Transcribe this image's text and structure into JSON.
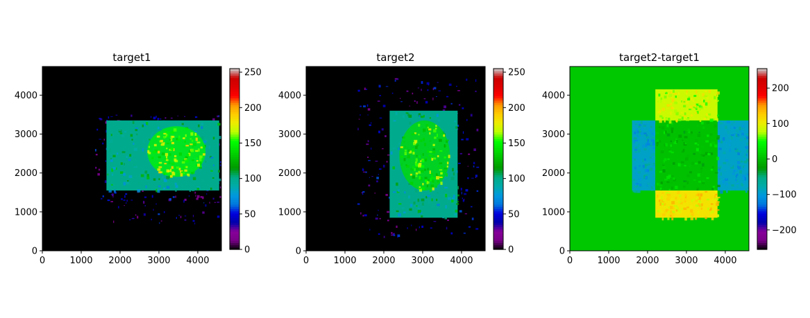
{
  "chart_data": [
    {
      "type": "heatmap",
      "title": "target1",
      "xlim": [
        0,
        4608
      ],
      "ylim": [
        0,
        4736
      ],
      "xticks": [
        0,
        1000,
        2000,
        3000,
        4000
      ],
      "yticks": [
        0,
        1000,
        2000,
        3000,
        4000
      ],
      "colorbar": {
        "colormap": "nipy_spectral",
        "range": [
          0,
          255
        ],
        "ticks": [
          0,
          50,
          100,
          150,
          200,
          250
        ]
      },
      "regions": [
        {
          "shape": "background",
          "value": 0
        },
        {
          "shape": "scatter_outline",
          "x_range": [
            1350,
            4600
          ],
          "y_range": [
            700,
            3500
          ],
          "value": 40
        },
        {
          "shape": "rectangle",
          "x_range": [
            1650,
            4550
          ],
          "y_range": [
            1550,
            3350
          ],
          "value": 100
        },
        {
          "shape": "blob",
          "center": [
            3450,
            2550
          ],
          "radius_x": 750,
          "radius_y": 650,
          "value": 150
        }
      ]
    },
    {
      "type": "heatmap",
      "title": "target2",
      "xlim": [
        0,
        4608
      ],
      "ylim": [
        0,
        4736
      ],
      "xticks": [
        0,
        1000,
        2000,
        3000,
        4000
      ],
      "yticks": [
        0,
        1000,
        2000,
        3000,
        4000
      ],
      "colorbar": {
        "colormap": "nipy_spectral",
        "range": [
          0,
          255
        ],
        "ticks": [
          0,
          50,
          100,
          150,
          200,
          250
        ]
      },
      "regions": [
        {
          "shape": "background",
          "value": 0
        },
        {
          "shape": "scatter_outline",
          "x_range": [
            1300,
            4400
          ],
          "y_range": [
            350,
            4450
          ],
          "value": 40
        },
        {
          "shape": "rectangle",
          "x_range": [
            2150,
            3900
          ],
          "y_range": [
            850,
            3600
          ],
          "value": 100
        },
        {
          "shape": "blob",
          "center": [
            3050,
            2450
          ],
          "radius_x": 650,
          "radius_y": 900,
          "value": 140
        }
      ]
    },
    {
      "type": "heatmap",
      "title": "target2-target1",
      "xlim": [
        0,
        4608
      ],
      "ylim": [
        0,
        4736
      ],
      "xticks": [
        0,
        1000,
        2000,
        3000,
        4000
      ],
      "yticks": [
        0,
        1000,
        2000,
        3000,
        4000
      ],
      "colorbar": {
        "colormap": "nipy_spectral",
        "range": [
          -255,
          255
        ],
        "ticks": [
          -200,
          -100,
          0,
          100,
          200
        ]
      },
      "regions": [
        {
          "shape": "background",
          "value": 10
        },
        {
          "shape": "rectangle",
          "x_range": [
            1600,
            2200
          ],
          "y_range": [
            1550,
            3350
          ],
          "value": -90
        },
        {
          "shape": "rectangle",
          "x_range": [
            3800,
            4600
          ],
          "y_range": [
            1550,
            3350
          ],
          "value": -90
        },
        {
          "shape": "rectangle",
          "x_range": [
            2200,
            3800
          ],
          "y_range": [
            1550,
            3350
          ],
          "value": 5
        },
        {
          "shape": "rectangle",
          "x_range": [
            2200,
            3800
          ],
          "y_range": [
            850,
            1550
          ],
          "value": 110
        },
        {
          "shape": "rectangle",
          "x_range": [
            2200,
            3800
          ],
          "y_range": [
            3350,
            4150
          ],
          "value": 85
        }
      ]
    }
  ]
}
